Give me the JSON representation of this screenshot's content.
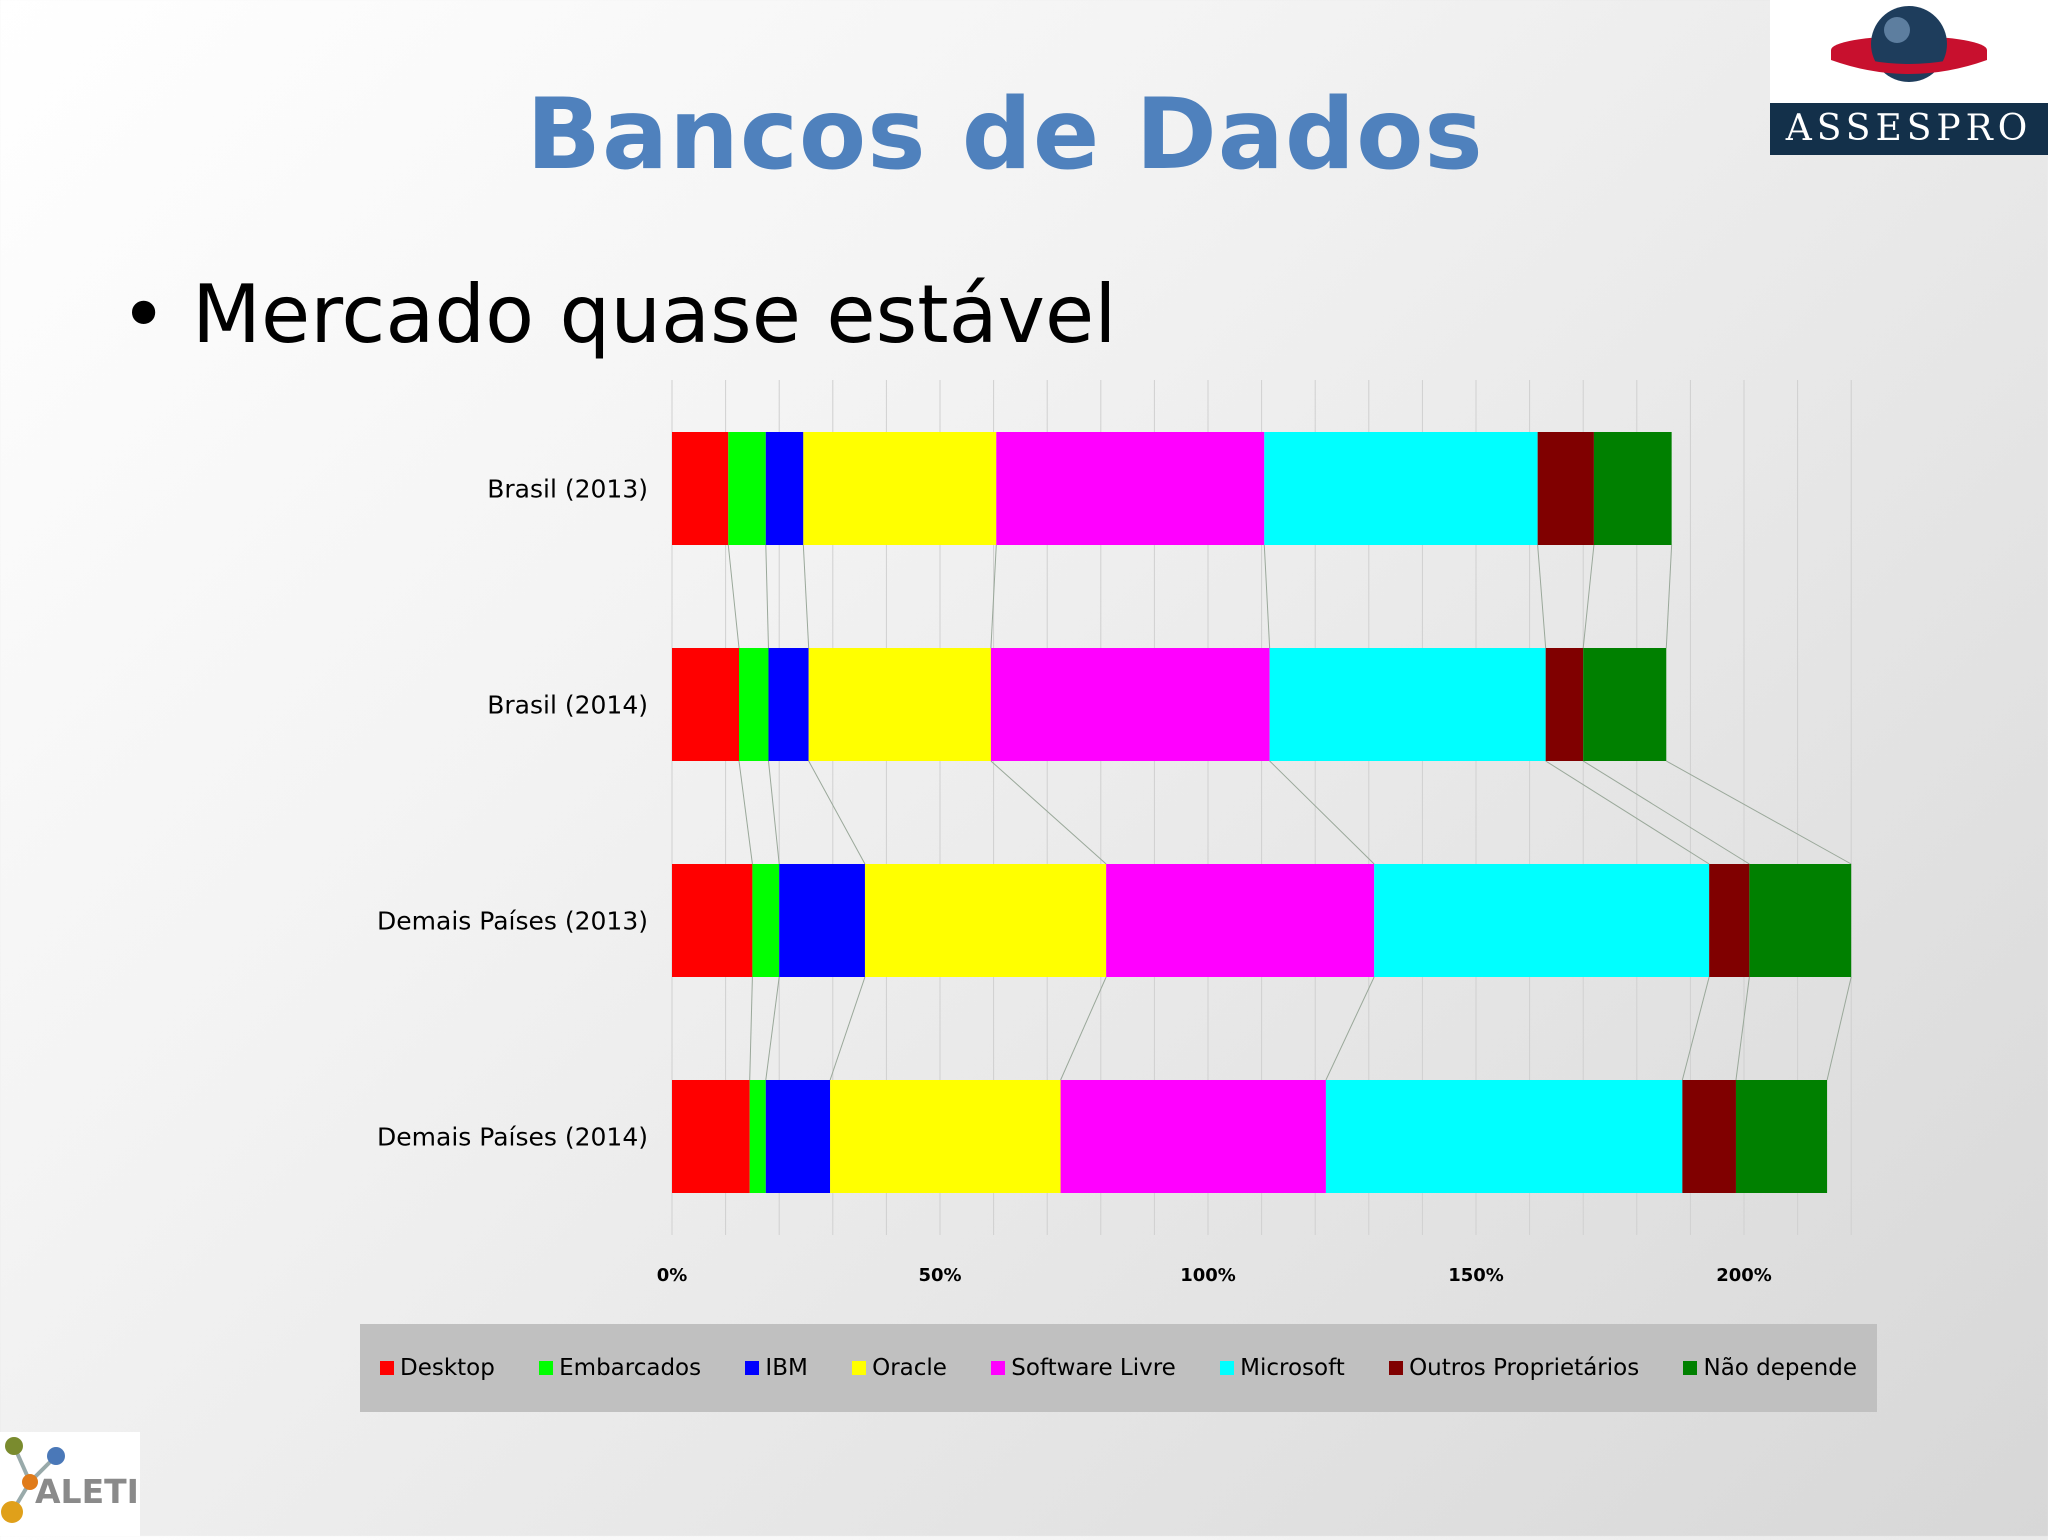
{
  "slide": {
    "title": "Bancos de Dados",
    "bullet": "Mercado quase estável"
  },
  "logos": {
    "top_right": "ASSESPRO",
    "bottom_left": "ALETI"
  },
  "chart_data": {
    "type": "bar",
    "orientation": "horizontal",
    "stacked": true,
    "categories": [
      "Brasil (2013)",
      "Brasil (2014)",
      "Demais Países (2013)",
      "Demais Países (2014)"
    ],
    "x_ticks": [
      "0%",
      "50%",
      "100%",
      "150%",
      "200%"
    ],
    "xlim": [
      0,
      220
    ],
    "grid": true,
    "legend_position": "bottom",
    "series_lines": true,
    "series": [
      {
        "name": "Desktop",
        "color": "#ff0000",
        "values": [
          10.5,
          12.5,
          15,
          14.5
        ]
      },
      {
        "name": "Embarcados",
        "color": "#00ff00",
        "values": [
          7,
          5.5,
          5,
          3
        ]
      },
      {
        "name": "IBM",
        "color": "#0000ff",
        "values": [
          7,
          7.5,
          16,
          12
        ]
      },
      {
        "name": "Oracle",
        "color": "#ffff00",
        "values": [
          36,
          34,
          45,
          43
        ]
      },
      {
        "name": "Software Livre",
        "color": "#ff00ff",
        "values": [
          50,
          52,
          50,
          49.5
        ]
      },
      {
        "name": "Microsoft",
        "color": "#00ffff",
        "values": [
          51,
          51.5,
          62.5,
          66.5
        ]
      },
      {
        "name": "Outros Proprietários",
        "color": "#800000",
        "values": [
          10.5,
          7,
          7.5,
          10
        ]
      },
      {
        "name": "Não depende",
        "color": "#008000",
        "values": [
          14.5,
          15.5,
          19,
          17
        ]
      }
    ]
  }
}
